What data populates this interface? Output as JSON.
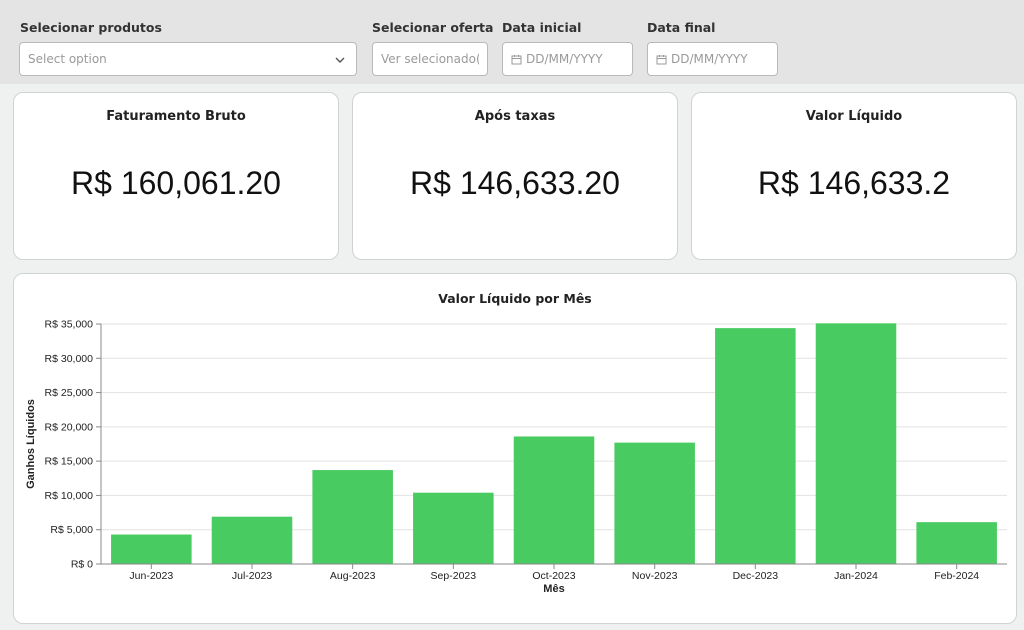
{
  "filters": {
    "produtos": {
      "label": "Selecionar produtos",
      "placeholder": "Select option"
    },
    "oferta": {
      "label": "Selecionar oferta",
      "placeholder": "Ver selecionado(s)"
    },
    "data_inicial": {
      "label": "Data inicial",
      "placeholder": "DD/MM/YYYY"
    },
    "data_final": {
      "label": "Data final",
      "placeholder": "DD/MM/YYYY"
    }
  },
  "kpis": [
    {
      "title": "Faturamento Bruto",
      "value": "R$ 160,061.20"
    },
    {
      "title": "Após taxas",
      "value": "R$ 146,633.20"
    },
    {
      "title": "Valor Líquido",
      "value": "R$ 146,633.2"
    }
  ],
  "colors": {
    "bar": "#48cc62",
    "grid": "#e2e2e2",
    "axis": "#888888"
  },
  "chart_data": {
    "type": "bar",
    "title": "Valor Líquido por Mês",
    "xlabel": "Mês",
    "ylabel": "Ganhos Líquidos",
    "categories": [
      "Jun-2023",
      "Jul-2023",
      "Aug-2023",
      "Sep-2023",
      "Oct-2023",
      "Nov-2023",
      "Dec-2023",
      "Jan-2024",
      "Feb-2024"
    ],
    "values": [
      4300,
      6900,
      13700,
      10400,
      18600,
      17700,
      34400,
      35100,
      6100
    ],
    "ylim": [
      0,
      35000
    ],
    "yticks": [
      0,
      5000,
      10000,
      15000,
      20000,
      25000,
      30000,
      35000
    ],
    "ytick_labels": [
      "R$ 0",
      "R$ 5,000",
      "R$ 10,000",
      "R$ 15,000",
      "R$ 20,000",
      "R$ 25,000",
      "R$ 30,000",
      "R$ 35,000"
    ],
    "grid": true
  }
}
